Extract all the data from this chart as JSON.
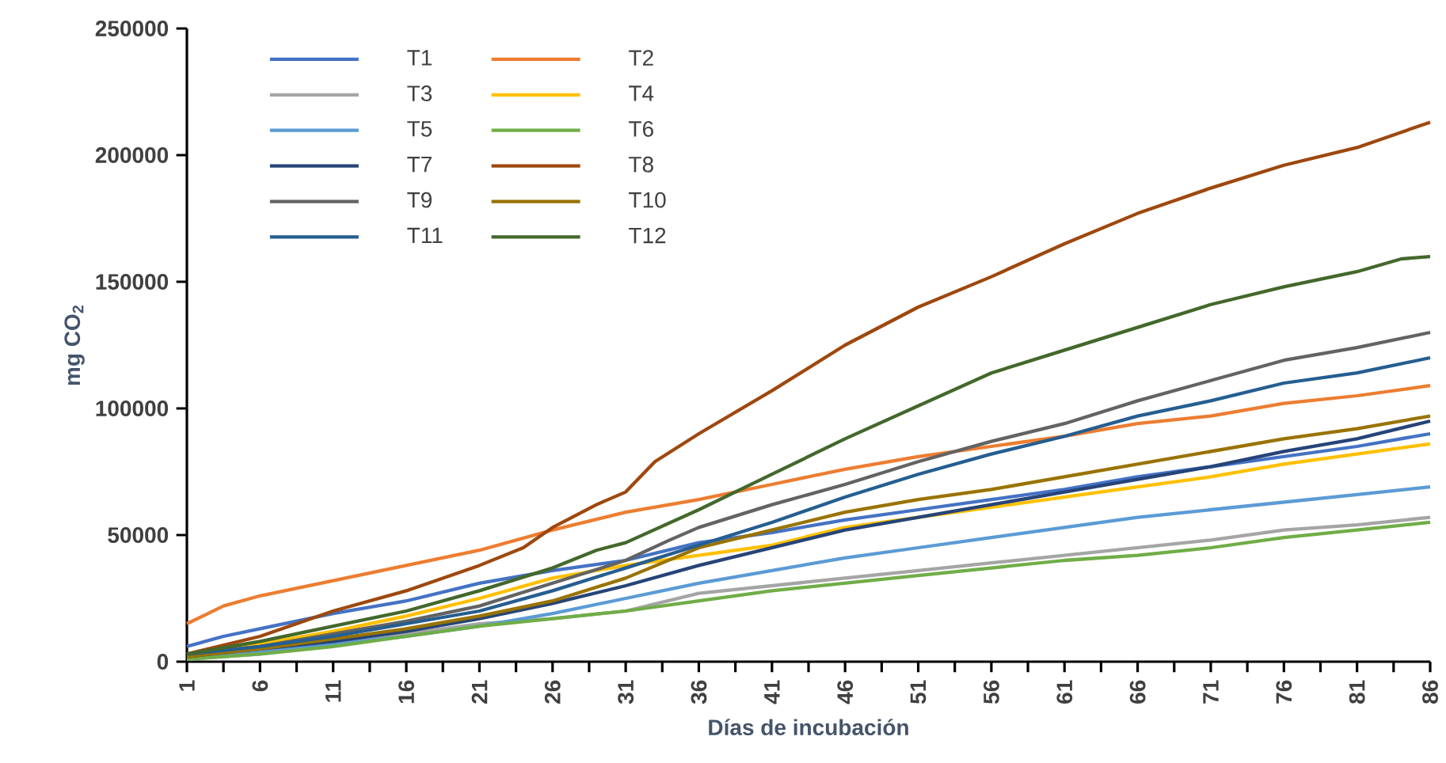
{
  "chart_data": {
    "type": "line",
    "xlabel": "Días de incubación",
    "ylabel": "mg CO$_{2}$",
    "marker": "none",
    "legend": "top left",
    "xlim": [
      1,
      86
    ],
    "ylim": [
      0,
      250000
    ],
    "yticks": [
      0,
      50000,
      100000,
      150000,
      200000,
      250000
    ],
    "xticks": [
      1,
      {
        "value": 3.5,
        "label": null
      },
      6,
      {
        "value": 8.5,
        "label": null
      },
      11,
      {
        "value": 13.5,
        "label": null
      },
      16,
      {
        "value": 18.5,
        "label": null
      },
      21,
      {
        "value": 23.5,
        "label": null
      },
      26,
      {
        "value": 28.5,
        "label": null
      },
      31,
      {
        "value": 33.5,
        "label": null
      },
      36,
      {
        "value": 38.5,
        "label": null
      },
      41,
      {
        "value": 43.5,
        "label": null
      },
      46,
      {
        "value": 48.5,
        "label": null
      },
      51,
      {
        "value": 53.5,
        "label": null
      },
      56,
      {
        "value": 58.5,
        "label": null
      },
      61,
      {
        "value": 63.5,
        "label": null
      },
      66,
      {
        "value": 68.5,
        "label": null
      },
      71,
      {
        "value": 73.5,
        "label": null
      },
      76,
      {
        "value": 78.5,
        "label": null
      },
      81,
      {
        "value": 83.5,
        "label": null
      },
      86
    ],
    "x": [
      1,
      6,
      11,
      16,
      21,
      26,
      31,
      36,
      41,
      46,
      51,
      56,
      61,
      66,
      71,
      76,
      81,
      86
    ],
    "series": [
      {
        "name": "T1",
        "color": "#4472c4",
        "x": [
          1,
          3.5,
          6,
          11,
          16,
          21,
          26,
          31,
          36,
          41,
          46,
          51,
          56,
          61,
          66,
          71,
          76,
          81,
          86
        ],
        "values": [
          6000,
          10000,
          13000,
          19000,
          24000,
          31000,
          36000,
          40000,
          47000,
          51000,
          56000,
          60000,
          64000,
          68000,
          73000,
          77000,
          81000,
          85000,
          90000
        ]
      },
      {
        "name": "T2",
        "color": "#ed7d31",
        "x": [
          1,
          3.5,
          6,
          11,
          16,
          21,
          26,
          31,
          36,
          41,
          46,
          51,
          56,
          61,
          66,
          71,
          76,
          81,
          86
        ],
        "values": [
          15000,
          22000,
          26000,
          32000,
          38000,
          44000,
          52000,
          59000,
          64000,
          70000,
          76000,
          81000,
          85000,
          89000,
          94000,
          97000,
          102000,
          105000,
          109000
        ]
      },
      {
        "name": "T3",
        "color": "#a5a5a5",
        "values": [
          1000,
          3000,
          7000,
          11000,
          15000,
          17000,
          20000,
          27000,
          30000,
          33000,
          36000,
          39000,
          42000,
          45000,
          48000,
          52000,
          54000,
          57000
        ]
      },
      {
        "name": "T4",
        "color": "#ffc000",
        "values": [
          3000,
          7000,
          12000,
          18000,
          25000,
          33000,
          38000,
          42000,
          46000,
          53000,
          57000,
          61000,
          65000,
          69000,
          73000,
          78000,
          82000,
          86000
        ]
      },
      {
        "name": "T5",
        "color": "#5b9bd5",
        "values": [
          2000,
          4000,
          7000,
          10000,
          14000,
          19000,
          25000,
          31000,
          36000,
          41000,
          45000,
          49000,
          53000,
          57000,
          60000,
          63000,
          66000,
          69000
        ]
      },
      {
        "name": "T6",
        "color": "#70ad47",
        "values": [
          1000,
          3000,
          6000,
          10000,
          14000,
          17000,
          20000,
          24000,
          28000,
          31000,
          34000,
          37000,
          40000,
          42000,
          45000,
          49000,
          52000,
          55000
        ]
      },
      {
        "name": "T7",
        "color": "#264478",
        "values": [
          2000,
          5000,
          8000,
          12000,
          17000,
          23000,
          30000,
          38000,
          45000,
          52000,
          57000,
          62000,
          67000,
          72000,
          77000,
          83000,
          88000,
          95000
        ]
      },
      {
        "name": "T8",
        "color": "#9e480e",
        "x": [
          1,
          6,
          11,
          16,
          21,
          24,
          26,
          29,
          31,
          33,
          36,
          41,
          46,
          51,
          56,
          61,
          66,
          71,
          76,
          81,
          86
        ],
        "values": [
          3000,
          10000,
          20000,
          28000,
          38000,
          45000,
          53000,
          62000,
          67000,
          79000,
          90000,
          107000,
          125000,
          140000,
          152000,
          165000,
          177000,
          187000,
          196000,
          203000,
          213000
        ]
      },
      {
        "name": "T9",
        "color": "#636363",
        "x": [
          1,
          6,
          11,
          16,
          21,
          26,
          31,
          34,
          36,
          41,
          46,
          51,
          56,
          61,
          66,
          71,
          76,
          81,
          86
        ],
        "values": [
          3000,
          6000,
          11000,
          16000,
          22000,
          31000,
          40000,
          48000,
          53000,
          62000,
          70000,
          79000,
          87000,
          94000,
          103000,
          111000,
          119000,
          124000,
          130000
        ]
      },
      {
        "name": "T10",
        "color": "#997300",
        "values": [
          2000,
          5000,
          9000,
          13000,
          18000,
          24000,
          33000,
          45000,
          52000,
          59000,
          64000,
          68000,
          73000,
          78000,
          83000,
          88000,
          92000,
          97000
        ]
      },
      {
        "name": "T11",
        "color": "#255e91",
        "values": [
          3000,
          6000,
          10000,
          15000,
          20000,
          28000,
          37000,
          46000,
          55000,
          65000,
          74000,
          82000,
          89000,
          97000,
          103000,
          110000,
          114000,
          120000
        ]
      },
      {
        "name": "T12",
        "color": "#43682b",
        "x": [
          1,
          6,
          11,
          16,
          21,
          26,
          29,
          31,
          36,
          41,
          46,
          51,
          56,
          61,
          66,
          71,
          76,
          81,
          84,
          86
        ],
        "values": [
          3000,
          8000,
          14000,
          20000,
          28000,
          37000,
          44000,
          47000,
          60000,
          74000,
          88000,
          101000,
          114000,
          123000,
          132000,
          141000,
          148000,
          154000,
          159000,
          160000
        ]
      }
    ]
  }
}
